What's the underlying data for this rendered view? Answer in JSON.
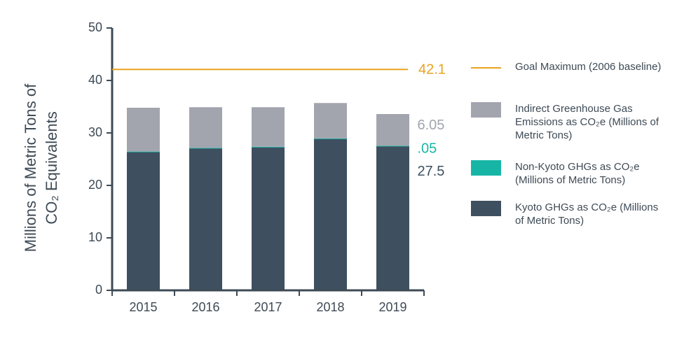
{
  "chart_data": {
    "type": "stacked_bar",
    "ylabel": [
      "Millions of Metric Tons of",
      "CO₂ Equivalents"
    ],
    "categories": [
      "2015",
      "2016",
      "2017",
      "2018",
      "2019"
    ],
    "series": [
      {
        "name": "Kyoto GHGs as CO₂e (Millions of Metric Tons)",
        "color": "#3e5060",
        "values": [
          26.4,
          27.1,
          27.3,
          28.9,
          27.5
        ],
        "value_labels": [
          null,
          null,
          null,
          null,
          "27.5"
        ]
      },
      {
        "name": "Non-Kyoto GHGs as CO₂e (Millions of Metric Tons)",
        "color": "#17b5a6",
        "values": [
          0.05,
          0.05,
          0.05,
          0.05,
          0.05
        ],
        "value_labels": [
          null,
          null,
          null,
          null,
          ".05"
        ]
      },
      {
        "name": "Indirect Greenhouse Gas Emissions as CO₂e (Millions of Metric Tons)",
        "color": "#a2a5ae",
        "values": [
          8.35,
          7.75,
          7.55,
          6.75,
          6.05
        ],
        "value_labels": [
          null,
          null,
          null,
          null,
          "6.05"
        ]
      }
    ],
    "goal": {
      "name": "Goal Maximum (2006 baseline)",
      "value": 42.1,
      "color": "#e8a21f"
    },
    "ylim": [
      0,
      50
    ],
    "yticks": [
      0,
      10,
      20,
      30,
      40,
      50
    ]
  }
}
